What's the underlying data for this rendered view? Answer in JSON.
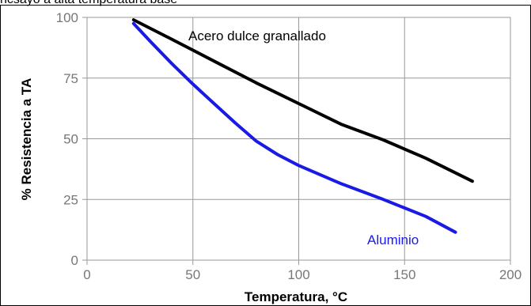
{
  "caption": "ncsayo a alta temperatura base",
  "chart_data": {
    "type": "line",
    "xlabel": "Temperatura, °C",
    "ylabel": "% Resistencia a TA",
    "xlim": [
      0,
      200
    ],
    "ylim": [
      0,
      100
    ],
    "xticks": [
      0,
      50,
      100,
      150,
      200
    ],
    "yticks": [
      0,
      25,
      50,
      75,
      100
    ],
    "grid": true,
    "series": [
      {
        "name": "Acero dulce granallado",
        "color": "#000000",
        "x": [
          22,
          40,
          60,
          80,
          100,
          120,
          140,
          160,
          182
        ],
        "y": [
          99,
          91,
          82,
          73,
          64.5,
          56,
          49.5,
          42,
          32.5
        ]
      },
      {
        "name": "Aluminio",
        "color": "#1a1ae6",
        "x": [
          22,
          30,
          40,
          50,
          60,
          70,
          80,
          90,
          100,
          120,
          140,
          160,
          174
        ],
        "y": [
          97.5,
          90,
          81,
          72.5,
          64.5,
          56.5,
          49,
          43.5,
          39,
          31.5,
          25,
          18,
          11.5
        ]
      }
    ]
  }
}
